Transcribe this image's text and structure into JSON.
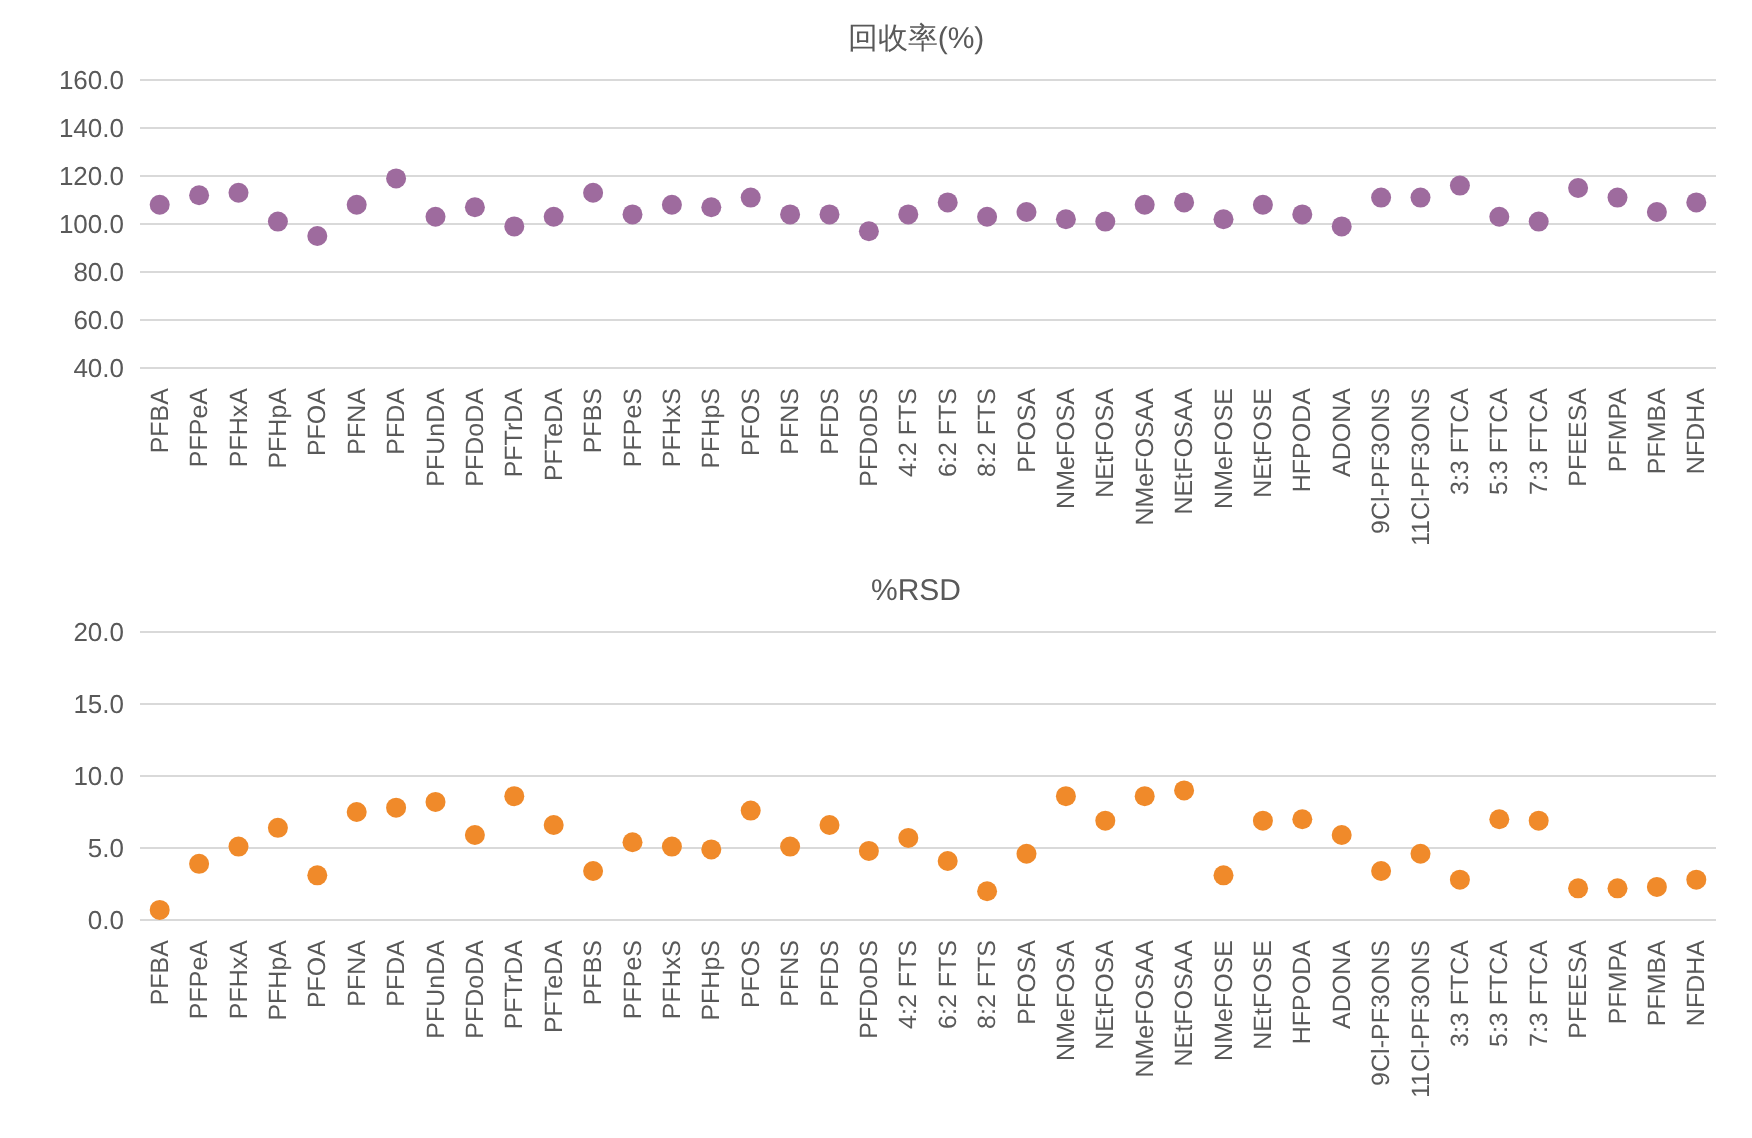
{
  "chart_data": [
    {
      "type": "scatter",
      "title": "回收率(%)",
      "categories": [
        "PFBA",
        "PFPeA",
        "PFHxA",
        "PFHpA",
        "PFOA",
        "PFNA",
        "PFDA",
        "PFUnDA",
        "PFDoDA",
        "PFTrDA",
        "PFTeDA",
        "PFBS",
        "PFPeS",
        "PFHxS",
        "PFHpS",
        "PFOS",
        "PFNS",
        "PFDS",
        "PFDoDS",
        "4:2 FTS",
        "6:2 FTS",
        "8:2 FTS",
        "PFOSA",
        "NMeFOSA",
        "NEtFOSA",
        "NMeFOSAA",
        "NEtFOSAA",
        "NMeFOSE",
        "NEtFOSE",
        "HFPODA",
        "ADONA",
        "9Cl-PF3ONS",
        "11Cl-PF3ONS",
        "3:3 FTCA",
        "5:3 FTCA",
        "7:3 FTCA",
        "PFEESA",
        "PFMPA",
        "PFMBA",
        "NFDHA"
      ],
      "series": [
        {
          "color": "#9e6b9e",
          "values": [
            108,
            112,
            113,
            101,
            95,
            108,
            119,
            103,
            107,
            99,
            103,
            113,
            104,
            108,
            107,
            111,
            104,
            104,
            97,
            104,
            109,
            103,
            105,
            102,
            101,
            108,
            109,
            102,
            108,
            104,
            99,
            111,
            111,
            116,
            103,
            101,
            115,
            111,
            105,
            109
          ]
        }
      ],
      "ylim": [
        40,
        160
      ],
      "yticks": [
        {
          "value": 40,
          "label": "40.0"
        },
        {
          "value": 60,
          "label": "60.0"
        },
        {
          "value": 80,
          "label": "80.0"
        },
        {
          "value": 100,
          "label": "100.0"
        },
        {
          "value": 120,
          "label": "120.0"
        },
        {
          "value": 140,
          "label": "140.0"
        },
        {
          "value": 160,
          "label": "160.0"
        }
      ],
      "grid": "y",
      "marker": "circle"
    },
    {
      "type": "scatter",
      "title": "%RSD",
      "categories": [
        "PFBA",
        "PFPeA",
        "PFHxA",
        "PFHpA",
        "PFOA",
        "PFNA",
        "PFDA",
        "PFUnDA",
        "PFDoDA",
        "PFTrDA",
        "PFTeDA",
        "PFBS",
        "PFPeS",
        "PFHxS",
        "PFHpS",
        "PFOS",
        "PFNS",
        "PFDS",
        "PFDoDS",
        "4:2 FTS",
        "6:2 FTS",
        "8:2 FTS",
        "PFOSA",
        "NMeFOSA",
        "NEtFOSA",
        "NMeFOSAA",
        "NEtFOSAA",
        "NMeFOSE",
        "NEtFOSE",
        "HFPODA",
        "ADONA",
        "9Cl-PF3ONS",
        "11Cl-PF3ONS",
        "3:3 FTCA",
        "5:3 FTCA",
        "7:3 FTCA",
        "PFEESA",
        "PFMPA",
        "PFMBA",
        "NFDHA"
      ],
      "series": [
        {
          "color": "#f08a2a",
          "values": [
            0.7,
            3.9,
            5.1,
            6.4,
            3.1,
            7.5,
            7.8,
            8.2,
            5.9,
            8.6,
            6.6,
            3.4,
            5.4,
            5.1,
            4.9,
            7.6,
            5.1,
            6.6,
            4.8,
            5.7,
            4.1,
            2.0,
            4.6,
            8.6,
            6.9,
            8.6,
            9.0,
            3.1,
            6.9,
            7.0,
            5.9,
            3.4,
            4.6,
            2.8,
            7.0,
            6.9,
            2.2,
            2.2,
            2.3,
            2.8
          ]
        }
      ],
      "ylim": [
        0,
        20
      ],
      "yticks": [
        {
          "value": 0,
          "label": "0.0"
        },
        {
          "value": 5,
          "label": "5.0"
        },
        {
          "value": 10,
          "label": "10.0"
        },
        {
          "value": 15,
          "label": "15.0"
        },
        {
          "value": 20,
          "label": "20.0"
        }
      ],
      "grid": "y",
      "marker": "circle"
    }
  ]
}
